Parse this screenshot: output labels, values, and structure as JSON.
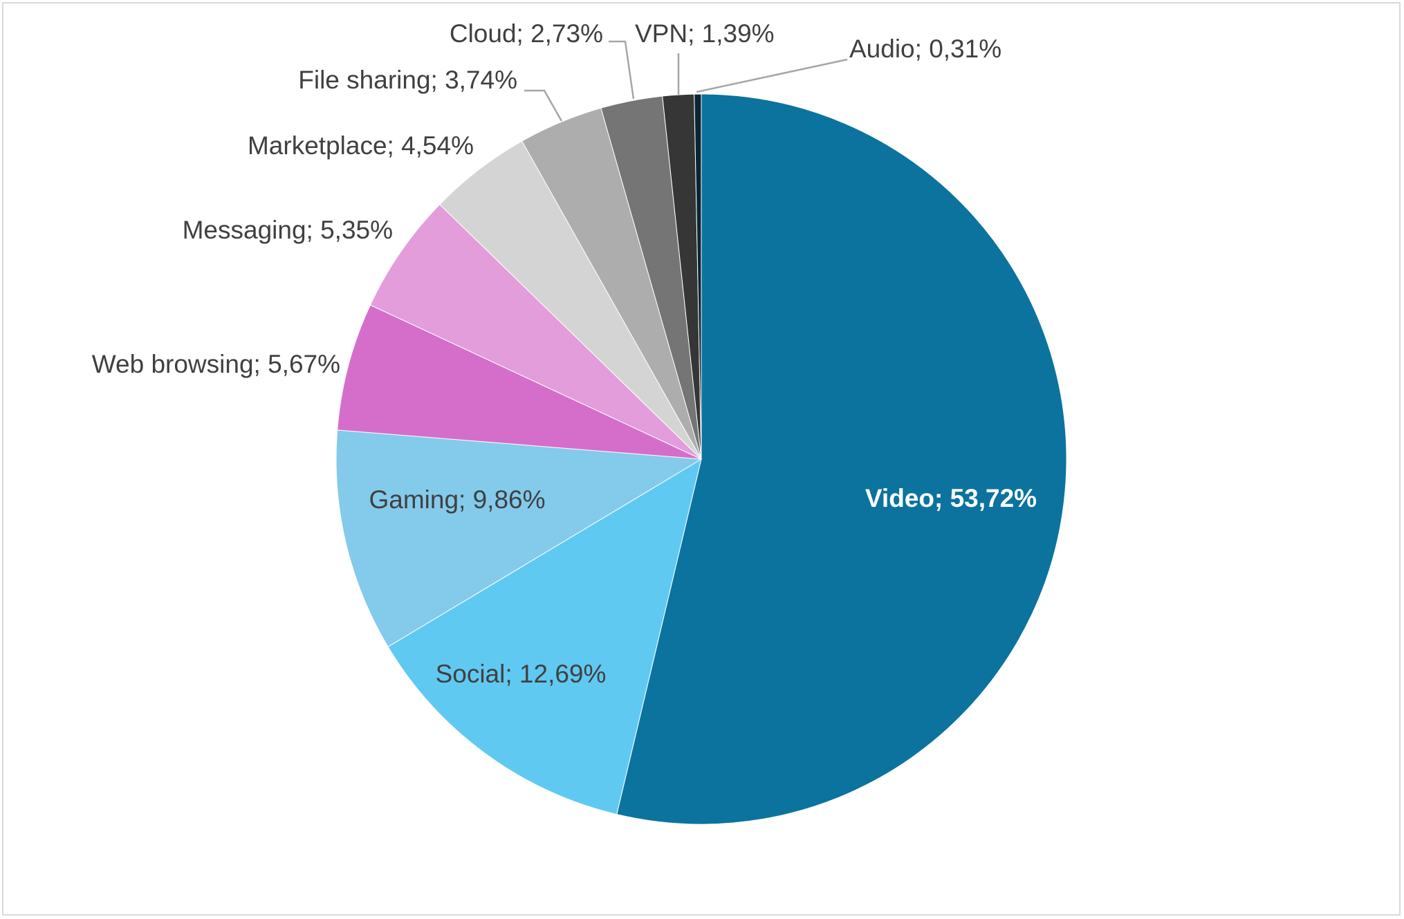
{
  "chart_data": {
    "type": "pie",
    "title": "",
    "start_angle_deg": 0,
    "direction": "clockwise",
    "legend": "none",
    "slices": [
      {
        "name": "Video",
        "value": 53.72,
        "label": "Video; 53,72%",
        "color": "#0b739e",
        "label_position": "inside",
        "label_style": "bold-white"
      },
      {
        "name": "Social",
        "value": 12.69,
        "label": "Social; 12,69%",
        "color": "#60c9f2",
        "label_position": "inside"
      },
      {
        "name": "Gaming",
        "value": 9.86,
        "label": "Gaming; 9,86%",
        "color": "#84caeb",
        "label_position": "inside"
      },
      {
        "name": "Web browsing",
        "value": 5.67,
        "label": "Web browsing; 5,67%",
        "color": "#d56ecb",
        "label_position": "outside"
      },
      {
        "name": "Messaging",
        "value": 5.35,
        "label": "Messaging; 5,35%",
        "color": "#e39ddb",
        "label_position": "outside"
      },
      {
        "name": "Marketplace",
        "value": 4.54,
        "label": "Marketplace; 4,54%",
        "color": "#d4d4d4",
        "label_position": "outside"
      },
      {
        "name": "File sharing",
        "value": 3.74,
        "label": "File sharing; 3,74%",
        "color": "#adadad",
        "label_position": "outside",
        "leader_line": true
      },
      {
        "name": "Cloud",
        "value": 2.73,
        "label": "Cloud; 2,73%",
        "color": "#757575",
        "label_position": "outside",
        "leader_line": true
      },
      {
        "name": "VPN",
        "value": 1.39,
        "label": "VPN; 1,39%",
        "color": "#363636",
        "label_position": "outside",
        "leader_line": true
      },
      {
        "name": "Audio",
        "value": 0.31,
        "label": "Audio; 0,31%",
        "color": "#0c2533",
        "label_position": "outside",
        "leader_line": true
      }
    ]
  }
}
